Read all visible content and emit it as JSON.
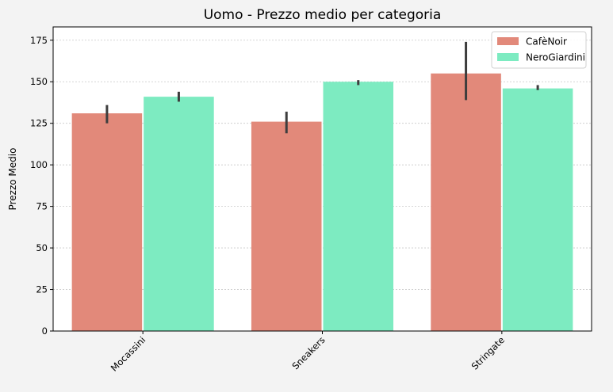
{
  "chart_data": {
    "type": "bar",
    "title": "Uomo - Prezzo medio per categoria",
    "xlabel": "",
    "ylabel": "Prezzo Medio",
    "ylim": [
      0,
      183
    ],
    "yticks": [
      0,
      25,
      50,
      75,
      100,
      125,
      150,
      175
    ],
    "grid": "y, dotted",
    "legend_position": "top-right",
    "categories": [
      "Mocassini",
      "Sneakers",
      "Stringate"
    ],
    "series": [
      {
        "name": "CafèNoir",
        "color": "#e2897a",
        "values": [
          131,
          126,
          155
        ],
        "error_low": [
          125,
          119,
          139
        ],
        "error_high": [
          136,
          132,
          174
        ]
      },
      {
        "name": "NeroGiardini",
        "color": "#7debc1",
        "values": [
          141,
          150,
          146
        ],
        "error_low": [
          138,
          148,
          145
        ],
        "error_high": [
          144,
          151,
          148
        ]
      }
    ]
  }
}
